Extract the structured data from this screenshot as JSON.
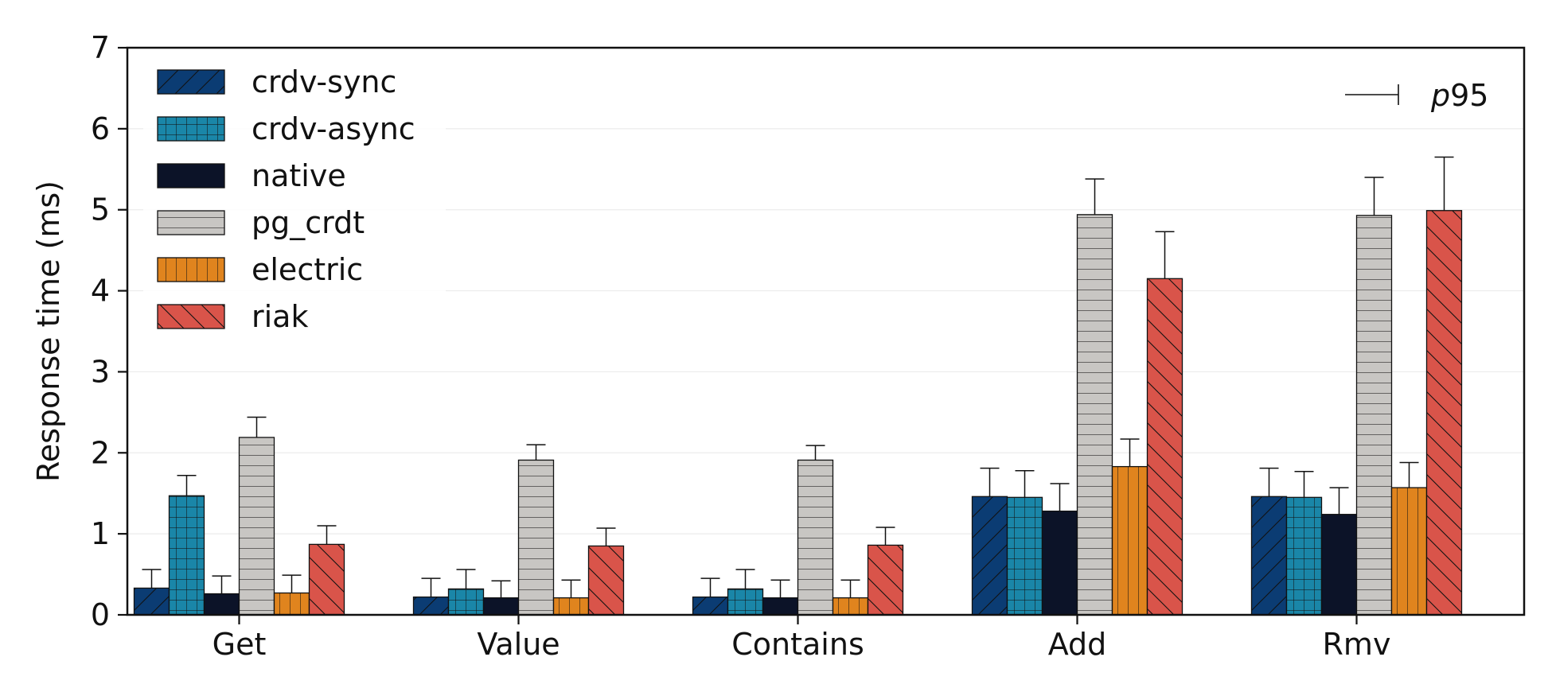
{
  "chart_data": {
    "type": "bar",
    "categories": [
      "Get",
      "Value",
      "Contains",
      "Add",
      "Rmv"
    ],
    "ylabel": "Response time (ms)",
    "xlabel": "",
    "ylim": [
      0,
      7
    ],
    "yticks": [
      0,
      1,
      2,
      3,
      4,
      5,
      6,
      7
    ],
    "grid": "horizontal",
    "legend_position": "top-left",
    "error_legend": {
      "italic": "p",
      "text": "95"
    },
    "series": [
      {
        "name": "crdv-sync",
        "color": "#0b3c73",
        "pattern": "diag-up",
        "values": [
          0.33,
          0.22,
          0.22,
          1.46,
          1.46
        ],
        "p95": [
          0.56,
          0.45,
          0.45,
          1.81,
          1.81
        ]
      },
      {
        "name": "crdv-async",
        "color": "#1a86a8",
        "pattern": "grid",
        "values": [
          1.47,
          0.32,
          0.32,
          1.45,
          1.45
        ],
        "p95": [
          1.72,
          0.56,
          0.56,
          1.78,
          1.77
        ]
      },
      {
        "name": "native",
        "color": "#0c1328",
        "pattern": "none",
        "values": [
          0.26,
          0.21,
          0.21,
          1.28,
          1.24
        ],
        "p95": [
          0.48,
          0.42,
          0.43,
          1.62,
          1.57
        ]
      },
      {
        "name": "pg_crdt",
        "color": "#c8c6c3",
        "pattern": "horizontal",
        "values": [
          2.19,
          1.91,
          1.91,
          4.94,
          4.93
        ],
        "p95": [
          2.44,
          2.1,
          2.09,
          5.38,
          5.4
        ]
      },
      {
        "name": "electric",
        "color": "#e0841e",
        "pattern": "vertical",
        "values": [
          0.27,
          0.21,
          0.21,
          1.83,
          1.57
        ],
        "p95": [
          0.49,
          0.43,
          0.43,
          2.17,
          1.88
        ]
      },
      {
        "name": "riak",
        "color": "#d9544a",
        "pattern": "diag-down",
        "values": [
          0.87,
          0.85,
          0.86,
          4.15,
          4.99
        ],
        "p95": [
          1.1,
          1.07,
          1.08,
          4.73,
          5.65
        ]
      }
    ]
  }
}
